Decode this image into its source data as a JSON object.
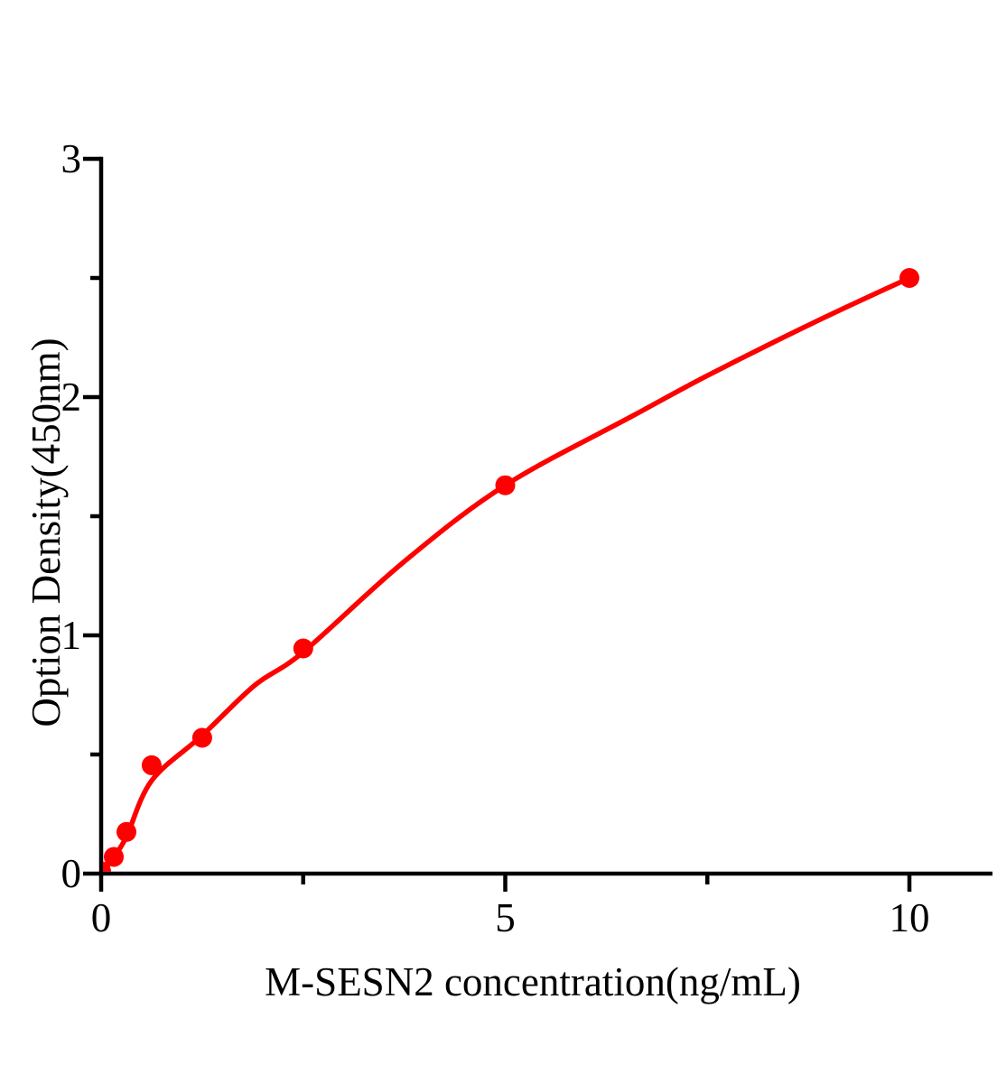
{
  "figure": {
    "background_color": "#ffffff",
    "axis_color": "#000000",
    "series_color": "#fe0000"
  },
  "chart_data": {
    "type": "scatter",
    "title": "",
    "xlabel": "M-SESN2 concentration(ng/mL)",
    "ylabel": "Option Density(450nm)",
    "xlim": [
      0,
      11.03
    ],
    "ylim": [
      0,
      3
    ],
    "x_major_ticks": [
      0,
      5,
      10
    ],
    "x_tick_labels": [
      "0",
      "5",
      "10"
    ],
    "x_minor_ticks": [
      2.5,
      7.5
    ],
    "y_major_ticks": [
      0,
      1,
      2,
      3
    ],
    "y_tick_labels": [
      "0",
      "1",
      "2",
      "3"
    ],
    "y_minor_ticks": [
      0.5,
      1.5,
      2.5
    ],
    "grid": false,
    "legend": "none",
    "series": [
      {
        "name": "standard-points",
        "type": "scatter",
        "color": "#fe0000",
        "points": [
          [
            0,
            0.01
          ],
          [
            0.156,
            0.07
          ],
          [
            0.3125,
            0.175
          ],
          [
            0.625,
            0.455
          ],
          [
            1.25,
            0.57
          ],
          [
            2.5,
            0.945
          ],
          [
            5,
            1.63
          ],
          [
            10,
            2.5
          ]
        ]
      },
      {
        "name": "fitted-curve",
        "type": "line",
        "color": "#fe0000",
        "points": [
          [
            0,
            0
          ],
          [
            0.156,
            0.07
          ],
          [
            0.3125,
            0.155
          ],
          [
            0.625,
            0.39
          ],
          [
            1.25,
            0.58
          ],
          [
            1.9,
            0.79
          ],
          [
            2.5,
            0.93
          ],
          [
            3.75,
            1.31
          ],
          [
            5,
            1.63
          ],
          [
            6.57,
            1.92
          ],
          [
            7.5,
            2.09
          ],
          [
            8.8,
            2.31
          ],
          [
            10,
            2.5
          ]
        ]
      }
    ]
  }
}
